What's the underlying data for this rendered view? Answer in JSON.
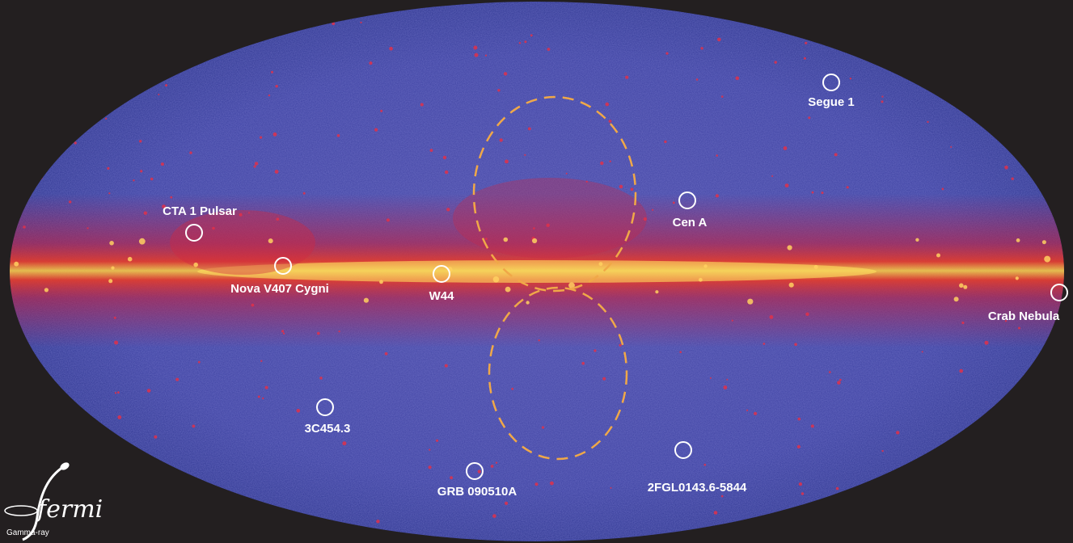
{
  "sources": [
    {
      "label": "Segue 1"
    },
    {
      "label": "CTA 1 Pulsar"
    },
    {
      "label": "Cen A"
    },
    {
      "label": "Nova V407 Cygni"
    },
    {
      "label": "W44"
    },
    {
      "label": "Crab Nebula"
    },
    {
      "label": "3C454.3"
    },
    {
      "label": "GRB 090510A"
    },
    {
      "label": "2FGL0143.6-5844"
    }
  ],
  "logo": {
    "name": "fermi",
    "subtitle": "Gamma-ray"
  }
}
